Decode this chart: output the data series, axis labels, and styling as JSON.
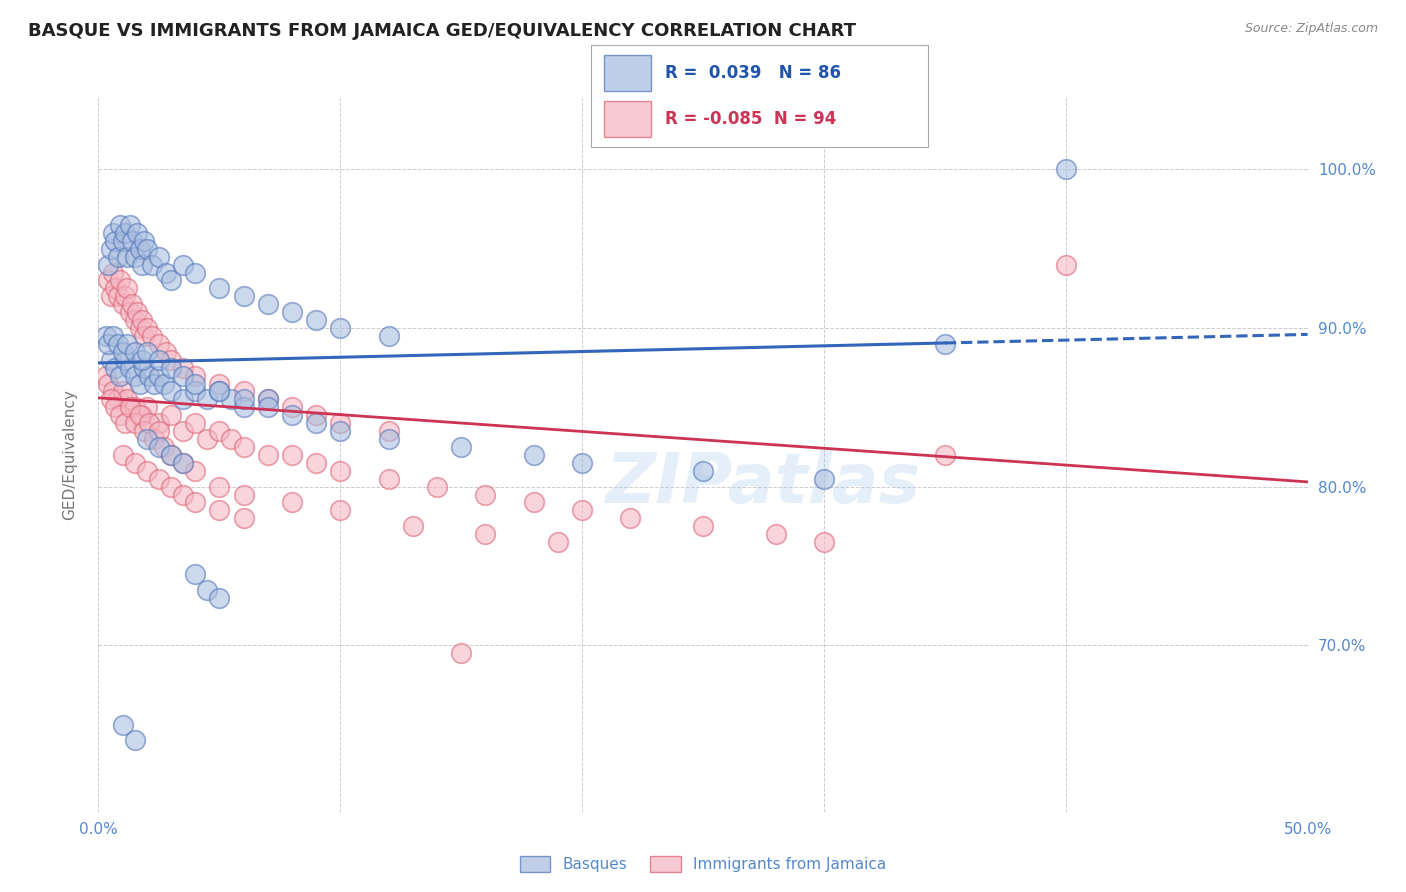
{
  "title": "BASQUE VS IMMIGRANTS FROM JAMAICA GED/EQUIVALENCY CORRELATION CHART",
  "source": "Source: ZipAtlas.com",
  "ylabel": "GED/Equivalency",
  "xlim": [
    0.0,
    0.5
  ],
  "ylim": [
    0.595,
    1.045
  ],
  "ytick_vals": [
    0.7,
    0.8,
    0.9,
    1.0
  ],
  "ytick_labels": [
    "70.0%",
    "80.0%",
    "90.0%",
    "100.0%"
  ],
  "xtick_vals": [
    0.0,
    0.1,
    0.2,
    0.3,
    0.4,
    0.5
  ],
  "xtick_labels": [
    "0.0%",
    "",
    "",
    "",
    "",
    "50.0%"
  ],
  "grid_color": "#cccccc",
  "background_color": "#ffffff",
  "blue_color": "#aabfe0",
  "pink_color": "#f5b8c4",
  "blue_edge": "#5577bb",
  "pink_edge": "#dd6677",
  "R_blue": 0.039,
  "N_blue": 86,
  "R_pink": -0.085,
  "N_pink": 94,
  "legend_label_blue": "Basques",
  "legend_label_pink": "Immigrants from Jamaica",
  "watermark": "ZIPatlas",
  "axis_label_color": "#5588cc",
  "title_fontsize": 13,
  "trend_blue_x0": 0.0,
  "trend_blue_x1": 0.5,
  "trend_blue_y0": 0.878,
  "trend_blue_y1": 0.896,
  "trend_blue_solid_end": 0.35,
  "trend_pink_x0": 0.0,
  "trend_pink_x1": 0.5,
  "trend_pink_y0": 0.856,
  "trend_pink_y1": 0.803,
  "blue_scatter_x": [
    0.004,
    0.005,
    0.006,
    0.007,
    0.008,
    0.009,
    0.01,
    0.011,
    0.012,
    0.013,
    0.014,
    0.015,
    0.016,
    0.017,
    0.018,
    0.019,
    0.02,
    0.022,
    0.025,
    0.028,
    0.03,
    0.035,
    0.04,
    0.05,
    0.06,
    0.07,
    0.08,
    0.09,
    0.1,
    0.12,
    0.005,
    0.007,
    0.009,
    0.011,
    0.013,
    0.015,
    0.017,
    0.019,
    0.021,
    0.023,
    0.025,
    0.027,
    0.03,
    0.035,
    0.04,
    0.045,
    0.05,
    0.055,
    0.06,
    0.07,
    0.003,
    0.004,
    0.006,
    0.008,
    0.01,
    0.012,
    0.015,
    0.018,
    0.02,
    0.025,
    0.03,
    0.035,
    0.04,
    0.05,
    0.06,
    0.07,
    0.08,
    0.09,
    0.1,
    0.12,
    0.15,
    0.18,
    0.2,
    0.25,
    0.3,
    0.35,
    0.02,
    0.025,
    0.03,
    0.035,
    0.04,
    0.045,
    0.05,
    0.01,
    0.015,
    0.4
  ],
  "blue_scatter_y": [
    0.94,
    0.95,
    0.96,
    0.955,
    0.945,
    0.965,
    0.955,
    0.96,
    0.945,
    0.965,
    0.955,
    0.945,
    0.96,
    0.95,
    0.94,
    0.955,
    0.95,
    0.94,
    0.945,
    0.935,
    0.93,
    0.94,
    0.935,
    0.925,
    0.92,
    0.915,
    0.91,
    0.905,
    0.9,
    0.895,
    0.88,
    0.875,
    0.87,
    0.88,
    0.875,
    0.87,
    0.865,
    0.875,
    0.87,
    0.865,
    0.87,
    0.865,
    0.86,
    0.855,
    0.86,
    0.855,
    0.86,
    0.855,
    0.85,
    0.855,
    0.895,
    0.89,
    0.895,
    0.89,
    0.885,
    0.89,
    0.885,
    0.88,
    0.885,
    0.88,
    0.875,
    0.87,
    0.865,
    0.86,
    0.855,
    0.85,
    0.845,
    0.84,
    0.835,
    0.83,
    0.825,
    0.82,
    0.815,
    0.81,
    0.805,
    0.89,
    0.83,
    0.825,
    0.82,
    0.815,
    0.745,
    0.735,
    0.73,
    0.65,
    0.64,
    1.0
  ],
  "pink_scatter_x": [
    0.004,
    0.005,
    0.006,
    0.007,
    0.008,
    0.009,
    0.01,
    0.011,
    0.012,
    0.013,
    0.014,
    0.015,
    0.016,
    0.017,
    0.018,
    0.019,
    0.02,
    0.022,
    0.025,
    0.028,
    0.03,
    0.035,
    0.04,
    0.05,
    0.06,
    0.07,
    0.08,
    0.09,
    0.1,
    0.12,
    0.003,
    0.004,
    0.006,
    0.008,
    0.01,
    0.012,
    0.015,
    0.018,
    0.02,
    0.025,
    0.03,
    0.035,
    0.04,
    0.045,
    0.05,
    0.055,
    0.06,
    0.07,
    0.08,
    0.09,
    0.1,
    0.12,
    0.14,
    0.16,
    0.18,
    0.2,
    0.22,
    0.25,
    0.28,
    0.3,
    0.005,
    0.007,
    0.009,
    0.011,
    0.013,
    0.015,
    0.017,
    0.019,
    0.021,
    0.023,
    0.025,
    0.027,
    0.03,
    0.035,
    0.04,
    0.05,
    0.06,
    0.08,
    0.1,
    0.13,
    0.16,
    0.19,
    0.35,
    0.01,
    0.015,
    0.02,
    0.025,
    0.03,
    0.035,
    0.04,
    0.05,
    0.06,
    0.15,
    0.4
  ],
  "pink_scatter_y": [
    0.93,
    0.92,
    0.935,
    0.925,
    0.92,
    0.93,
    0.915,
    0.92,
    0.925,
    0.91,
    0.915,
    0.905,
    0.91,
    0.9,
    0.905,
    0.895,
    0.9,
    0.895,
    0.89,
    0.885,
    0.88,
    0.875,
    0.87,
    0.865,
    0.86,
    0.855,
    0.85,
    0.845,
    0.84,
    0.835,
    0.87,
    0.865,
    0.86,
    0.855,
    0.86,
    0.855,
    0.85,
    0.845,
    0.85,
    0.84,
    0.845,
    0.835,
    0.84,
    0.83,
    0.835,
    0.83,
    0.825,
    0.82,
    0.82,
    0.815,
    0.81,
    0.805,
    0.8,
    0.795,
    0.79,
    0.785,
    0.78,
    0.775,
    0.77,
    0.765,
    0.855,
    0.85,
    0.845,
    0.84,
    0.85,
    0.84,
    0.845,
    0.835,
    0.84,
    0.83,
    0.835,
    0.825,
    0.82,
    0.815,
    0.81,
    0.8,
    0.795,
    0.79,
    0.785,
    0.775,
    0.77,
    0.765,
    0.82,
    0.82,
    0.815,
    0.81,
    0.805,
    0.8,
    0.795,
    0.79,
    0.785,
    0.78,
    0.695,
    0.94
  ]
}
